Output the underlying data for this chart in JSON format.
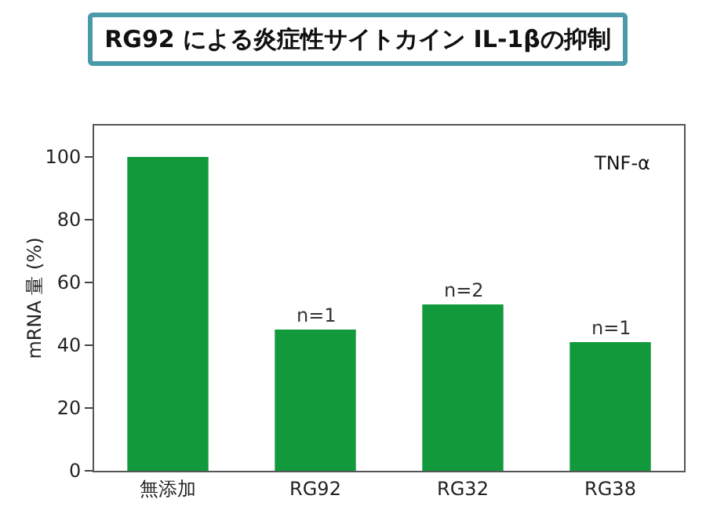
{
  "chart_data": {
    "type": "bar",
    "title": "RG92 による炎症性サイトカイン IL-1βの抑制",
    "ylabel": "mRNA 量 (%)",
    "categories": [
      "無添加",
      "RG92",
      "RG32",
      "RG38"
    ],
    "values": [
      100,
      45,
      53,
      41
    ],
    "color": "#12993c",
    "ylim": [
      0,
      110
    ],
    "yticks": [
      0,
      20,
      40,
      60,
      80,
      100
    ],
    "grid": false,
    "annotations": [
      "TNF-α",
      {
        "text": "n=1",
        "x": "RG92",
        "y": 45
      },
      {
        "text": "n=2",
        "x": "RG32",
        "y": 53
      },
      {
        "text": "n=1",
        "x": "RG38",
        "y": 41
      }
    ]
  }
}
